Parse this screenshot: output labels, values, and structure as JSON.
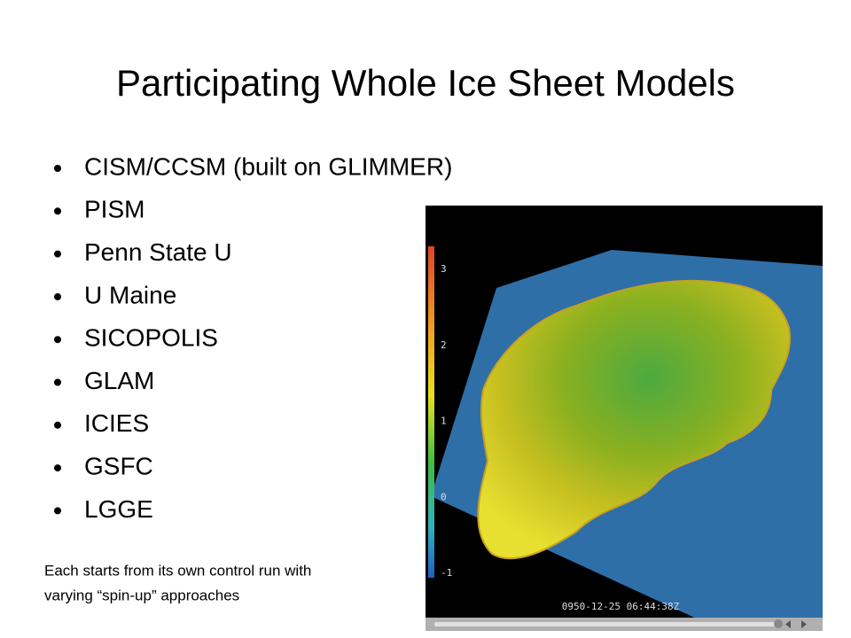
{
  "title": "Participating Whole Ice Sheet Models",
  "bullets": [
    "CISM/CCSM (built on GLIMMER)",
    "PISM",
    "Penn State U",
    "U Maine",
    "SICOPOLIS",
    "GLAM",
    "ICIES",
    "GSFC",
    "LGGE"
  ],
  "caption": [
    "Each starts from its own control run with",
    "varying “spin-up” approaches"
  ],
  "video": {
    "colorbar_labels": [
      "3",
      "2",
      "1",
      "0",
      "-1"
    ],
    "timestamp": "0950-12-25 06:44:38Z"
  }
}
